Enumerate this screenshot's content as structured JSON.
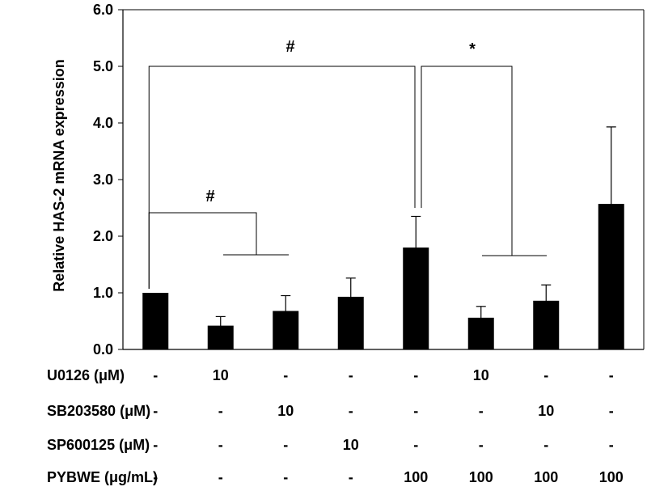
{
  "chart_data": {
    "type": "bar",
    "ylabel": "Relative HAS-2 mRNA expression",
    "ylim": [
      0,
      6
    ],
    "yticks": [
      "0.0",
      "1.0",
      "2.0",
      "3.0",
      "4.0",
      "5.0",
      "6.0"
    ],
    "grid": false,
    "bar_color": "#000000",
    "values": [
      1.0,
      0.42,
      0.68,
      0.93,
      1.8,
      0.56,
      0.86,
      2.57
    ],
    "errors": [
      0.0,
      0.16,
      0.27,
      0.33,
      0.55,
      0.2,
      0.28,
      1.36
    ],
    "treatments": [
      {
        "label": "U0126 (μM)",
        "values": [
          "-",
          "10",
          "-",
          "-",
          "-",
          "10",
          "-",
          "-"
        ]
      },
      {
        "label": "SB203580 (μM)",
        "values": [
          "-",
          "-",
          "10",
          "-",
          "-",
          "-",
          "10",
          "-"
        ]
      },
      {
        "label": "SP600125 (μM)",
        "values": [
          "-",
          "-",
          "-",
          "10",
          "-",
          "-",
          "-",
          "-"
        ]
      },
      {
        "label": "PYBWE (μg/mL)",
        "values": [
          "-",
          "-",
          "-",
          "-",
          "100",
          "100",
          "100",
          "100"
        ]
      }
    ],
    "significance": [
      {
        "symbol": "#",
        "from_bar": 0,
        "to_bars": [
          1,
          2
        ],
        "level": 2.4
      },
      {
        "symbol": "#",
        "from_bar": 0,
        "to_bars": [
          4
        ],
        "level": 5.0
      },
      {
        "symbol": "*",
        "from_bar": 4,
        "to_bars": [
          5,
          6
        ],
        "level": 5.0
      }
    ]
  }
}
